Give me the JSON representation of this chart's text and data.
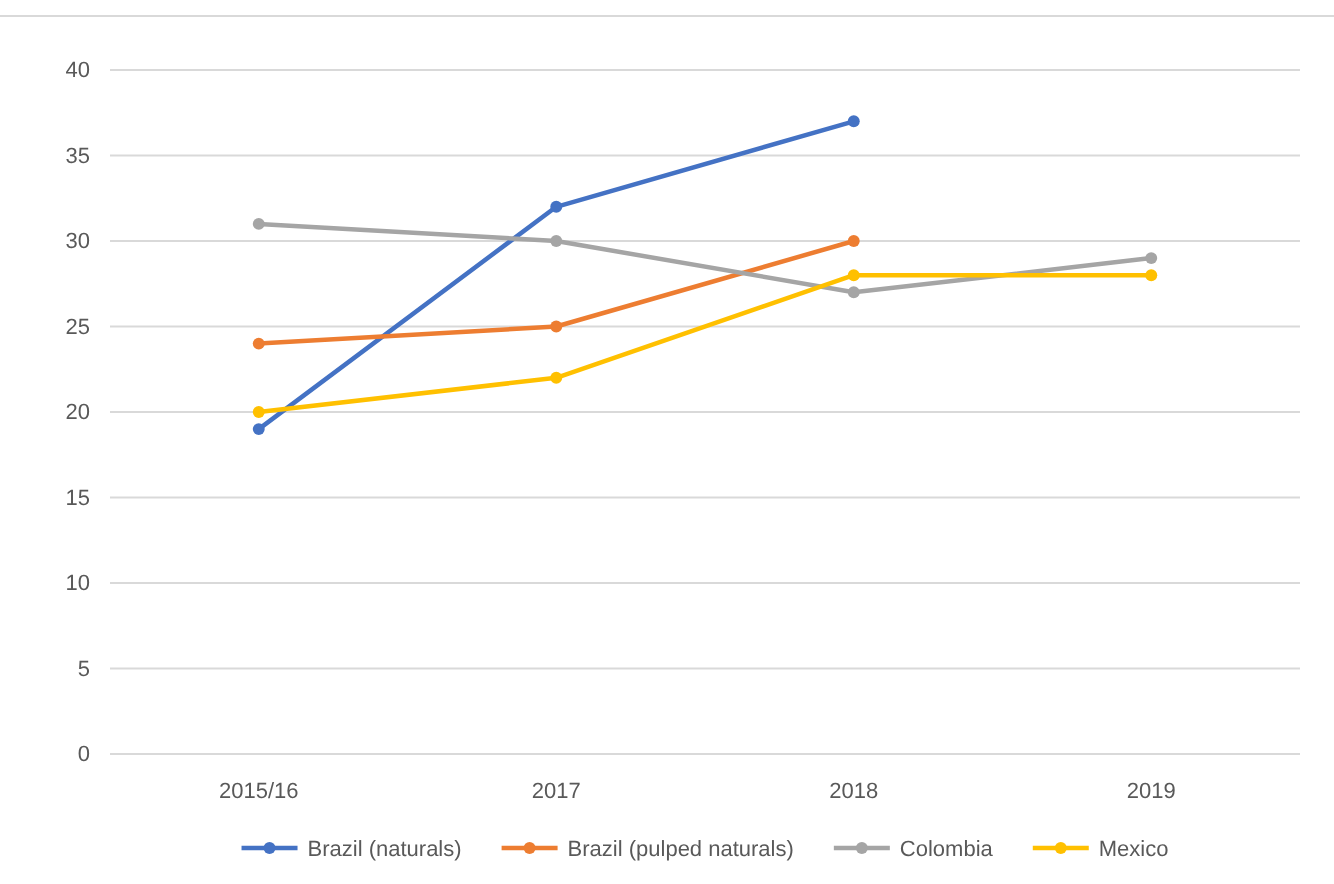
{
  "chart_data": {
    "type": "line",
    "categories": [
      "2015/16",
      "2017",
      "2018",
      "2019"
    ],
    "series": [
      {
        "name": "Brazil (naturals)",
        "color": "#4472c4",
        "values": [
          19,
          32,
          37,
          null
        ]
      },
      {
        "name": "Brazil (pulped naturals)",
        "color": "#ed7d31",
        "values": [
          24,
          25,
          30,
          null
        ]
      },
      {
        "name": "Colombia",
        "color": "#a5a5a5",
        "values": [
          31,
          30,
          27,
          29
        ]
      },
      {
        "name": "Mexico",
        "color": "#ffc000",
        "values": [
          20,
          22,
          28,
          28
        ]
      }
    ],
    "ylim": [
      0,
      40
    ],
    "yticks": [
      0,
      5,
      10,
      15,
      20,
      25,
      30,
      35,
      40
    ],
    "grid": "y",
    "legend": "bottom",
    "marker": "circle",
    "line_style": "solid"
  }
}
